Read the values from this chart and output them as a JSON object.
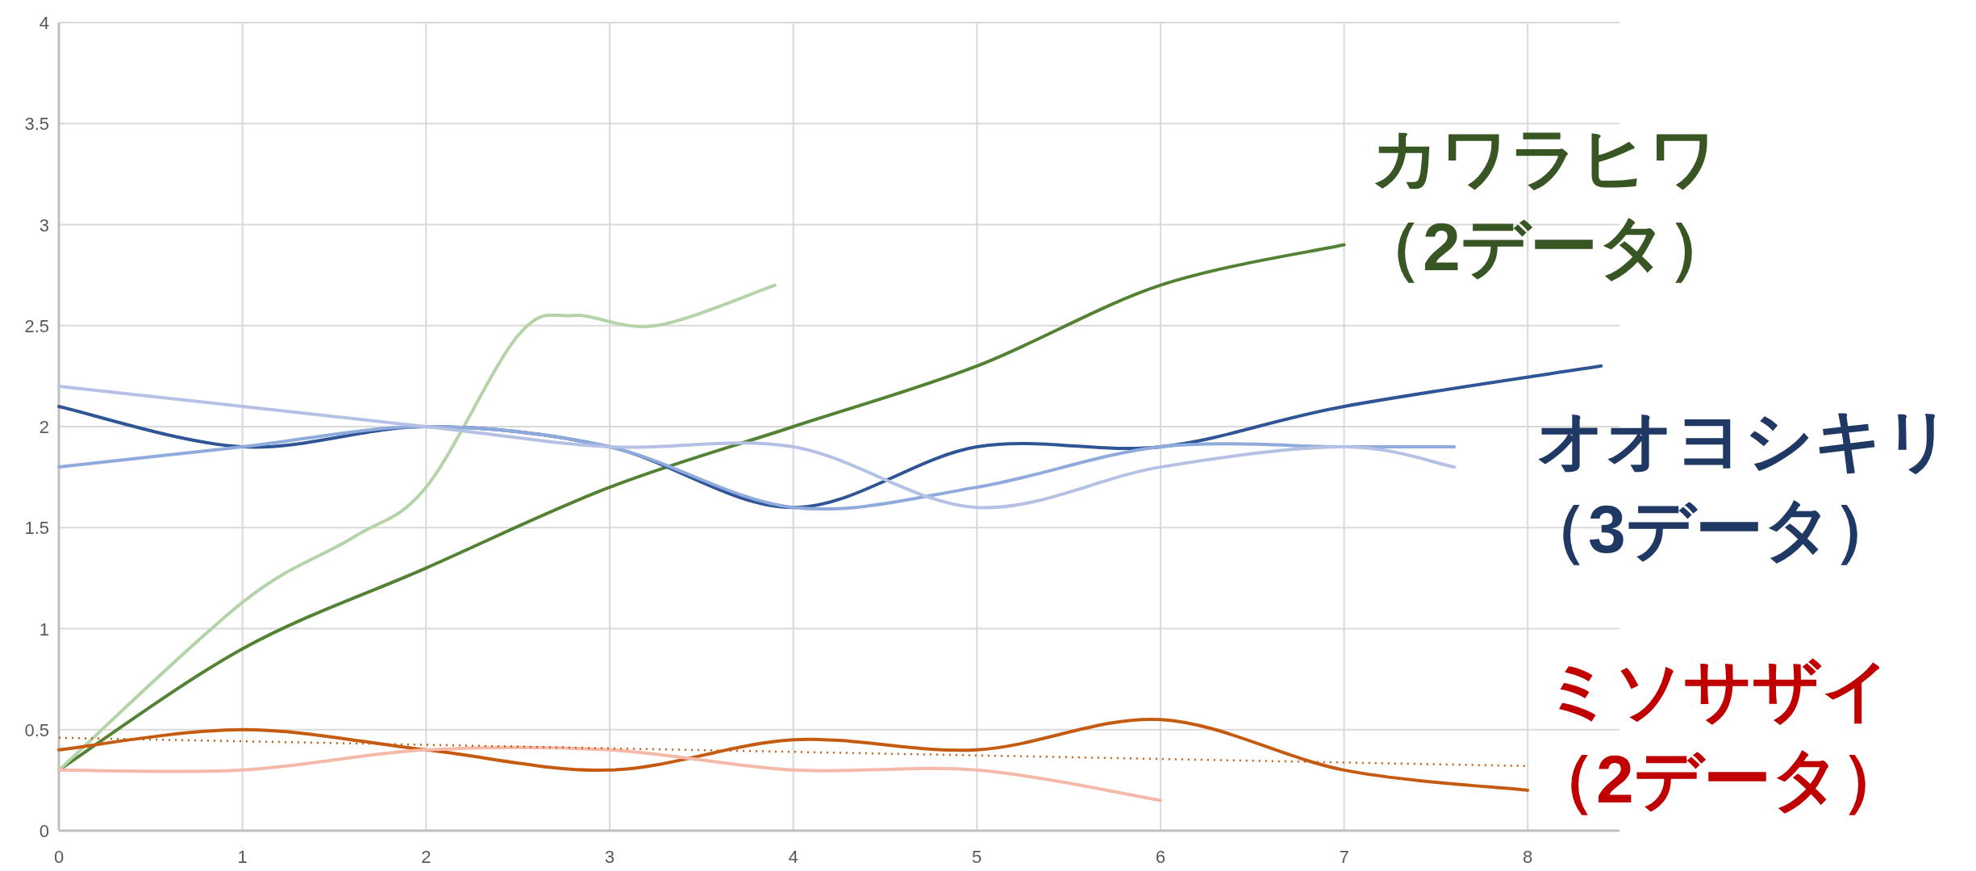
{
  "chart_data": {
    "type": "line",
    "xlim": [
      0,
      8.5
    ],
    "xticks": [
      0,
      1,
      2,
      3,
      4,
      5,
      6,
      7,
      8
    ],
    "ylim": [
      0,
      4
    ],
    "yticks": [
      0,
      0.5,
      1,
      1.5,
      2,
      2.5,
      3,
      3.5,
      4
    ],
    "grid": true,
    "marker": "none",
    "series": [
      {
        "color": "#548235",
        "x": [
          0,
          1,
          2,
          3,
          4,
          5,
          6,
          7
        ],
        "values": [
          0.3,
          0.9,
          1.3,
          1.7,
          2.0,
          2.3,
          2.7,
          2.9
        ]
      },
      {
        "color": "#b5d3a8",
        "x": [
          0,
          1,
          1.6,
          2,
          2.5,
          2.8,
          3.25,
          3.9
        ],
        "values": [
          0.3,
          1.13,
          1.45,
          1.7,
          2.45,
          2.55,
          2.5,
          2.7
        ]
      },
      {
        "color": "#2f5597",
        "x": [
          0,
          1,
          2,
          3,
          4,
          5,
          6,
          7,
          8.4
        ],
        "values": [
          2.1,
          1.9,
          2.0,
          1.9,
          1.6,
          1.9,
          1.9,
          2.1,
          2.3
        ]
      },
      {
        "color": "#8faadc",
        "x": [
          0,
          1,
          2,
          3,
          4,
          5,
          6,
          7,
          7.6
        ],
        "values": [
          1.8,
          1.9,
          2.0,
          1.9,
          1.6,
          1.7,
          1.9,
          1.9,
          1.9
        ]
      },
      {
        "color": "#b4c0e4",
        "x": [
          0,
          2,
          3,
          4,
          5,
          6,
          7,
          7.6
        ],
        "values": [
          2.2,
          2.0,
          1.9,
          1.9,
          1.6,
          1.8,
          1.9,
          1.8
        ]
      },
      {
        "color": "#c55a11",
        "x": [
          0,
          1,
          2,
          3,
          4,
          5,
          6,
          7,
          8
        ],
        "values": [
          0.4,
          0.5,
          0.4,
          0.3,
          0.45,
          0.4,
          0.55,
          0.3,
          0.2
        ]
      },
      {
        "color": "#f4b9a8",
        "x": [
          0,
          1,
          2,
          3,
          4,
          5,
          6
        ],
        "values": [
          0.3,
          0.3,
          0.4,
          0.4,
          0.3,
          0.3,
          0.15
        ]
      },
      {
        "color": "#c55a11",
        "line_style": "dotted",
        "x": [
          0,
          8
        ],
        "values": [
          0.46,
          0.32
        ]
      }
    ],
    "annotations": [
      "カワラヒワ（2データ）",
      "オオヨシキリ（3データ）",
      "ミソサザイ（2データ）"
    ]
  }
}
